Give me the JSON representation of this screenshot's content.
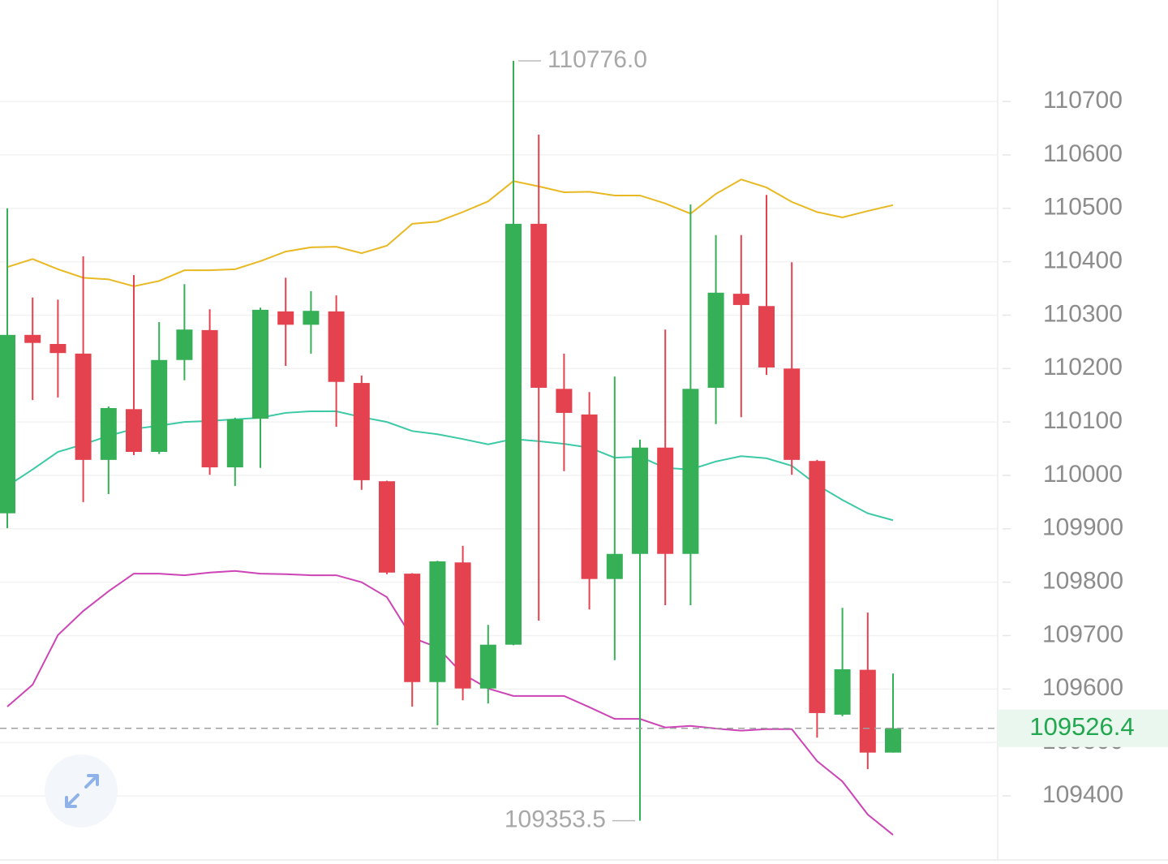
{
  "chart_data": {
    "type": "candlestick",
    "open": [
      109929,
      110263,
      110246,
      110228,
      110029,
      110124,
      110044,
      110216,
      110272,
      110015,
      110106,
      110307,
      110282,
      110307,
      110173,
      109989,
      109816,
      109613,
      109837,
      109601,
      109683,
      110471,
      110162,
      110114,
      109806,
      109853,
      110052,
      109853,
      110164,
      110340,
      110317,
      110200,
      110027,
      109552,
      109636,
      109481
    ],
    "high": [
      110500,
      110333,
      110329,
      110410,
      110129,
      110375,
      110287,
      110358,
      110311,
      110108,
      110314,
      110370,
      110345,
      110337,
      110187,
      109990,
      109817,
      109840,
      109868,
      109720,
      110776,
      110638,
      110228,
      110156,
      110185,
      110067,
      110273,
      110507,
      110450,
      110450,
      110525,
      110399,
      110029,
      109752,
      109743,
      109629
    ],
    "low": [
      109901,
      110141,
      110146,
      109950,
      109965,
      110038,
      110040,
      110178,
      110001,
      109980,
      110014,
      110205,
      110228,
      110091,
      109973,
      109815,
      109567,
      109532,
      109579,
      109573,
      109682,
      109728,
      110008,
      109749,
      109654,
      109353.5,
      109757,
      109757,
      110096,
      110109,
      110188,
      110001,
      109509,
      109549,
      109450,
      109481
    ],
    "close": [
      110263,
      110248,
      110229,
      110029,
      110126,
      110044,
      110216,
      110273,
      110015,
      110105,
      110310,
      110282,
      110308,
      110175,
      109991,
      109818,
      109613,
      109839,
      109601,
      109683,
      110471,
      110164,
      110117,
      109806,
      109853,
      110052,
      109853,
      110162,
      110342,
      110319,
      110202,
      110029,
      109555,
      109637,
      109481,
      109526.4
    ],
    "up_color": "#36b057",
    "down_color": "#e5424f",
    "bands": [
      {
        "color": "#e8b923",
        "values": [
          110390,
          110405,
          110386,
          110370,
          110367,
          110354,
          110364,
          110384,
          110384,
          110386,
          110401,
          110419,
          110427,
          110428,
          110416,
          110430,
          110471,
          110475,
          110493,
          110513,
          110551,
          110541,
          110530,
          110531,
          110524,
          110524,
          110509,
          110490,
          110527,
          110554,
          110539,
          110512,
          110493,
          110483,
          110495,
          110506
        ]
      },
      {
        "color": "#3cc9a6",
        "values": [
          109980,
          110011,
          110044,
          110058,
          110074,
          110087,
          110093,
          110100,
          110102,
          110105,
          110108,
          110117,
          110120,
          110120,
          110109,
          110100,
          110083,
          110077,
          110068,
          110058,
          110068,
          110064,
          110059,
          110052,
          110033,
          110035,
          110014,
          110011,
          110026,
          110036,
          110032,
          110018,
          109982,
          109954,
          109929,
          109916
        ]
      },
      {
        "color": "#cc44b5",
        "values": [
          109567,
          109608,
          109701,
          109746,
          109783,
          109816,
          109816,
          109813,
          109818,
          109821,
          109816,
          109815,
          109813,
          109813,
          109800,
          109772,
          109696,
          109678,
          109628,
          109601,
          109587,
          109587,
          109587,
          109566,
          109544,
          109544,
          109528,
          109531,
          109526,
          109522,
          109525,
          109525,
          109465,
          109427,
          109365,
          109327
        ]
      }
    ],
    "ylim": [
      109280,
      110890
    ],
    "yticks": [
      109400,
      109500,
      109600,
      109700,
      109800,
      109900,
      110000,
      110100,
      110200,
      110300,
      110400,
      110500,
      110600,
      110700
    ],
    "grid": true,
    "high_label": {
      "value": 110776,
      "label": "110776.0"
    },
    "low_label": 109353.5,
    "last_price": 109526.4
  }
}
